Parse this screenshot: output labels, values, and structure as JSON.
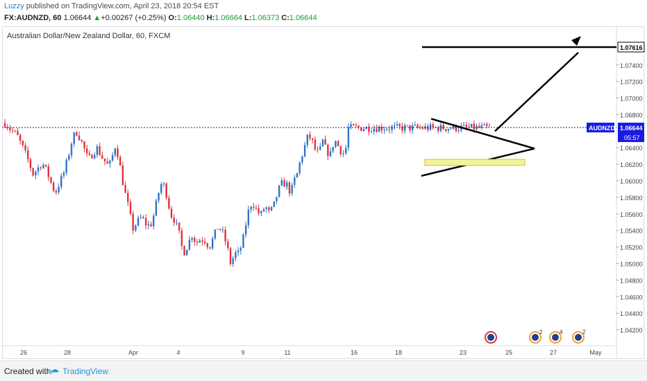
{
  "header": {
    "author": "Luzzy",
    "published_text": " published on TradingView.com, April 23, 2018 20:54 EST",
    "symbol_label": "FX:AUDNZD, 60",
    "last_price": "1.06644",
    "change_arrow": "▲",
    "change_text": "+0.00267 (+0.25%)",
    "open_label": "O:",
    "open_value": "1.06440",
    "high_label": "H:",
    "high_value": "1.06664",
    "low_label": "L:",
    "low_value": "1.06373",
    "close_label": "C:",
    "close_value": "1.06644"
  },
  "footer": {
    "created_with": "Created with",
    "brand": "TradingView"
  },
  "colors": {
    "up": "#2f73c9",
    "down": "#e0323c",
    "price_line": "#1a1aa6",
    "zone": "#f5f39a",
    "zone_border": "#c9c23a",
    "drawing": "#000000"
  },
  "chart_data": {
    "type": "candlestick",
    "title": "Australian Dollar/New Zealand Dollar, 60, FXCM",
    "symbol": "AUDNZD",
    "interval": "60",
    "current_price": 1.06644,
    "price_badge": "AUDNZD",
    "price_value_label": "1.06644",
    "countdown_label": "05:57",
    "target_price": 1.07616,
    "target_label": "1.07616",
    "y_ticks": [
      "1.07400",
      "1.07200",
      "1.07000",
      "1.06800",
      "1.06400",
      "1.06200",
      "1.06000",
      "1.05800",
      "1.05600",
      "1.05400",
      "1.05200",
      "1.05000",
      "1.04800",
      "1.04600",
      "1.04400",
      "1.04200"
    ],
    "ylim": [
      1.041,
      1.078
    ],
    "x_ticks": [
      "26",
      "28",
      "Apr",
      "4",
      "9",
      "11",
      "16",
      "18",
      "23",
      "25",
      "27",
      "May"
    ],
    "series": [
      {
        "name": "AUDNZD",
        "path_points": [
          [
            1.067,
            0.0
          ],
          [
            1.0662,
            0.012
          ],
          [
            1.0655,
            0.025
          ],
          [
            1.064,
            0.037
          ],
          [
            1.0625,
            0.048
          ],
          [
            1.0608,
            0.058
          ],
          [
            1.0615,
            0.068
          ],
          [
            1.0622,
            0.077
          ],
          [
            1.0612,
            0.086
          ],
          [
            1.0598,
            0.095
          ],
          [
            1.0585,
            0.104
          ],
          [
            1.0598,
            0.113
          ],
          [
            1.061,
            0.122
          ],
          [
            1.063,
            0.131
          ],
          [
            1.065,
            0.139
          ],
          [
            1.066,
            0.147
          ],
          [
            1.0652,
            0.155
          ],
          [
            1.064,
            0.163
          ],
          [
            1.0625,
            0.172
          ],
          [
            1.0633,
            0.181
          ],
          [
            1.064,
            0.19
          ],
          [
            1.063,
            0.199
          ],
          [
            1.0622,
            0.208
          ],
          [
            1.0617,
            0.215
          ],
          [
            1.063,
            0.222
          ],
          [
            1.0645,
            0.229
          ],
          [
            1.062,
            0.237
          ],
          [
            1.059,
            0.246
          ],
          [
            1.0568,
            0.255
          ],
          [
            1.0542,
            0.264
          ],
          [
            1.055,
            0.273
          ],
          [
            1.0556,
            0.282
          ],
          [
            1.0548,
            0.291
          ],
          [
            1.0545,
            0.3
          ],
          [
            1.056,
            0.308
          ],
          [
            1.0585,
            0.317
          ],
          [
            1.06,
            0.325
          ],
          [
            1.0585,
            0.333
          ],
          [
            1.056,
            0.342
          ],
          [
            1.0552,
            0.351
          ],
          [
            1.0535,
            0.36
          ],
          [
            1.0512,
            0.368
          ],
          [
            1.0522,
            0.377
          ],
          [
            1.0535,
            0.386
          ],
          [
            1.0525,
            0.395
          ],
          [
            1.053,
            0.404
          ],
          [
            1.0528,
            0.413
          ],
          [
            1.052,
            0.422
          ],
          [
            1.0532,
            0.431
          ],
          [
            1.0545,
            0.44
          ],
          [
            1.0538,
            0.449
          ],
          [
            1.0522,
            0.458
          ],
          [
            1.05,
            0.466
          ],
          [
            1.0512,
            0.475
          ],
          [
            1.0512,
            0.483
          ],
          [
            1.053,
            0.492
          ],
          [
            1.056,
            0.501
          ],
          [
            1.0575,
            0.51
          ],
          [
            1.0565,
            0.519
          ],
          [
            1.0558,
            0.528
          ],
          [
            1.057,
            0.537
          ],
          [
            1.056,
            0.546
          ],
          [
            1.057,
            0.555
          ],
          [
            1.0588,
            0.564
          ],
          [
            1.0598,
            0.573
          ],
          [
            1.0595,
            0.582
          ],
          [
            1.0585,
            0.59
          ],
          [
            1.06,
            0.597
          ],
          [
            1.0608,
            0.603
          ],
          [
            1.0625,
            0.61
          ],
          [
            1.064,
            0.618
          ],
          [
            1.0655,
            0.626
          ],
          [
            1.065,
            0.633
          ],
          [
            1.0638,
            0.64
          ],
          [
            1.0632,
            0.648
          ],
          [
            1.0648,
            0.656
          ],
          [
            1.0635,
            0.664
          ],
          [
            1.0632,
            0.672
          ],
          [
            1.065,
            0.68
          ],
          [
            1.0642,
            0.688
          ],
          [
            1.0635,
            0.695
          ],
          [
            1.0632,
            0.702
          ],
          [
            1.0664,
            0.709
          ]
        ]
      }
    ],
    "drawings": {
      "triangle": "symmetrical triangle",
      "support_zone": [
        1.0622,
        1.0626
      ],
      "projection_arrow_to": 1.07616
    },
    "event_icons": [
      "flag",
      "flag 2",
      "flag 4",
      "flag 2"
    ]
  }
}
